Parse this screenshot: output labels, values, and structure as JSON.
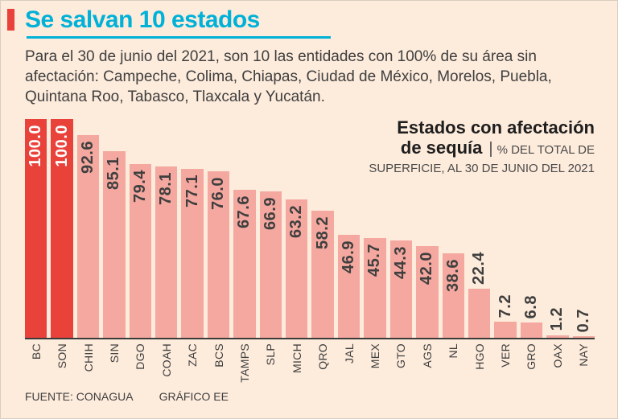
{
  "colors": {
    "background": "#fdebdb",
    "accent_red": "#e9423b",
    "bar_pink": "#f4a89f",
    "title_cyan": "#00b1d8",
    "text": "#3f3f3f"
  },
  "header": {
    "title": "Se salvan 10 estados",
    "intro": "Para el 30 de junio del 2021, son 10 las entidades con 100% de su área sin afectación: Campeche, Colima, Chiapas, Ciudad de México, Morelos, Puebla, Quintana Roo, Tabasco, Tlaxcala y Yucatán."
  },
  "chart_data": {
    "type": "bar",
    "title": "Estados con afectación de sequía",
    "title_line1": "Estados con afectación",
    "title_line2": "de sequía",
    "separator": "|",
    "subtitle_line1": "% DEL TOTAL DE",
    "subtitle_line2": "SUPERFICIE, AL 30 DE JUNIO DEL 2021",
    "categories": [
      "BC",
      "SON",
      "CHIH",
      "SIN",
      "DGO",
      "COAH",
      "ZAC",
      "BCS",
      "TAMPS",
      "SLP",
      "MICH",
      "QRO",
      "JAL",
      "MEX",
      "GTO",
      "AGS",
      "NL",
      "HGO",
      "VER",
      "GRO",
      "OAX",
      "NAY"
    ],
    "values": [
      100.0,
      100.0,
      92.6,
      85.1,
      79.4,
      78.1,
      77.1,
      76.0,
      67.6,
      66.9,
      63.2,
      58.2,
      46.9,
      45.7,
      44.3,
      42.0,
      38.6,
      22.4,
      7.2,
      6.8,
      1.2,
      0.7
    ],
    "highlighted": [
      "BC",
      "SON"
    ],
    "ylim": [
      0,
      100
    ],
    "xlabel": "",
    "ylabel": "% del total de superficie",
    "grid": false,
    "legend_position": "top-right"
  },
  "footer": {
    "source": "FUENTE: CONAGUA",
    "credit": "GRÁFICO EE"
  }
}
